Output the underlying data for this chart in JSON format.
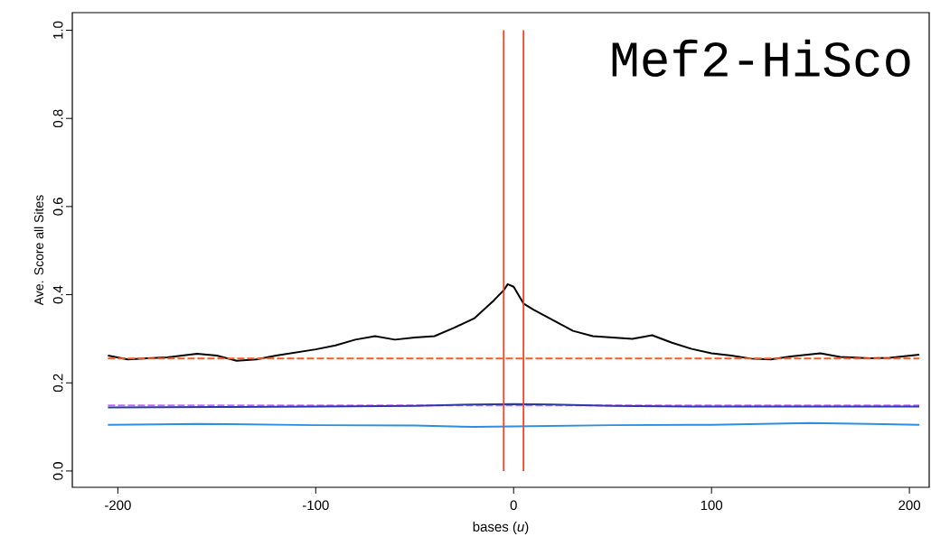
{
  "chart_data": {
    "type": "line",
    "title": "Mef2-HiSco",
    "xlabel": "bases (*u*)",
    "ylabel": "Ave. Score all Sites",
    "xlim": [
      -223,
      210
    ],
    "ylim": [
      -0.037,
      1.04
    ],
    "xticks": [
      -200,
      -100,
      0,
      100,
      200
    ],
    "yticks": [
      {
        "value": 0,
        "label": "0.0"
      },
      0.2,
      0.4,
      0.6,
      0.8,
      {
        "value": 1,
        "label": "1.0"
      }
    ],
    "grid": false,
    "series": [
      {
        "color": "#000000",
        "line_style": "solid",
        "x": [
          -205,
          -195,
          -185,
          -175,
          -160,
          -150,
          -140,
          -130,
          -120,
          -110,
          -100,
          -90,
          -80,
          -70,
          -60,
          -50,
          -40,
          -30,
          -20,
          -10,
          -5,
          -3,
          0,
          5,
          10,
          20,
          30,
          40,
          50,
          60,
          70,
          80,
          90,
          100,
          110,
          120,
          130,
          140,
          155,
          165,
          180,
          190,
          205
        ],
        "values": [
          0.262,
          0.253,
          0.256,
          0.258,
          0.266,
          0.262,
          0.25,
          0.253,
          0.262,
          0.269,
          0.276,
          0.285,
          0.298,
          0.306,
          0.298,
          0.303,
          0.306,
          0.325,
          0.346,
          0.387,
          0.41,
          0.424,
          0.418,
          0.38,
          0.366,
          0.342,
          0.318,
          0.306,
          0.303,
          0.3,
          0.308,
          0.291,
          0.277,
          0.267,
          0.262,
          0.255,
          0.253,
          0.26,
          0.267,
          0.259,
          0.256,
          0.257,
          0.264
        ]
      },
      {
        "color": "#ff5a1e",
        "line_style": "dashed",
        "x": [
          -205,
          205
        ],
        "values": [
          0.255,
          0.255
        ]
      },
      {
        "color": "#cc66ff",
        "line_style": "dashed",
        "x": [
          -205,
          205
        ],
        "values": [
          0.149,
          0.149
        ]
      },
      {
        "color": "#2b3aa8",
        "line_style": "solid",
        "x": [
          -205,
          -150,
          -100,
          -50,
          -20,
          0,
          20,
          50,
          100,
          150,
          205
        ],
        "values": [
          0.144,
          0.145,
          0.146,
          0.148,
          0.151,
          0.152,
          0.151,
          0.148,
          0.146,
          0.146,
          0.146
        ]
      },
      {
        "color": "#2a8fe0",
        "line_style": "solid",
        "x": [
          -205,
          -180,
          -160,
          -100,
          -50,
          -20,
          0,
          50,
          100,
          150,
          180,
          205
        ],
        "values": [
          0.105,
          0.106,
          0.107,
          0.104,
          0.103,
          0.1,
          0.101,
          0.104,
          0.105,
          0.109,
          0.107,
          0.105
        ]
      }
    ],
    "ref_lines": [
      {
        "axis": "x",
        "value": -5,
        "color": "#ff3c1e"
      },
      {
        "axis": "x",
        "value": 5,
        "color": "#ff3c1e"
      }
    ]
  }
}
